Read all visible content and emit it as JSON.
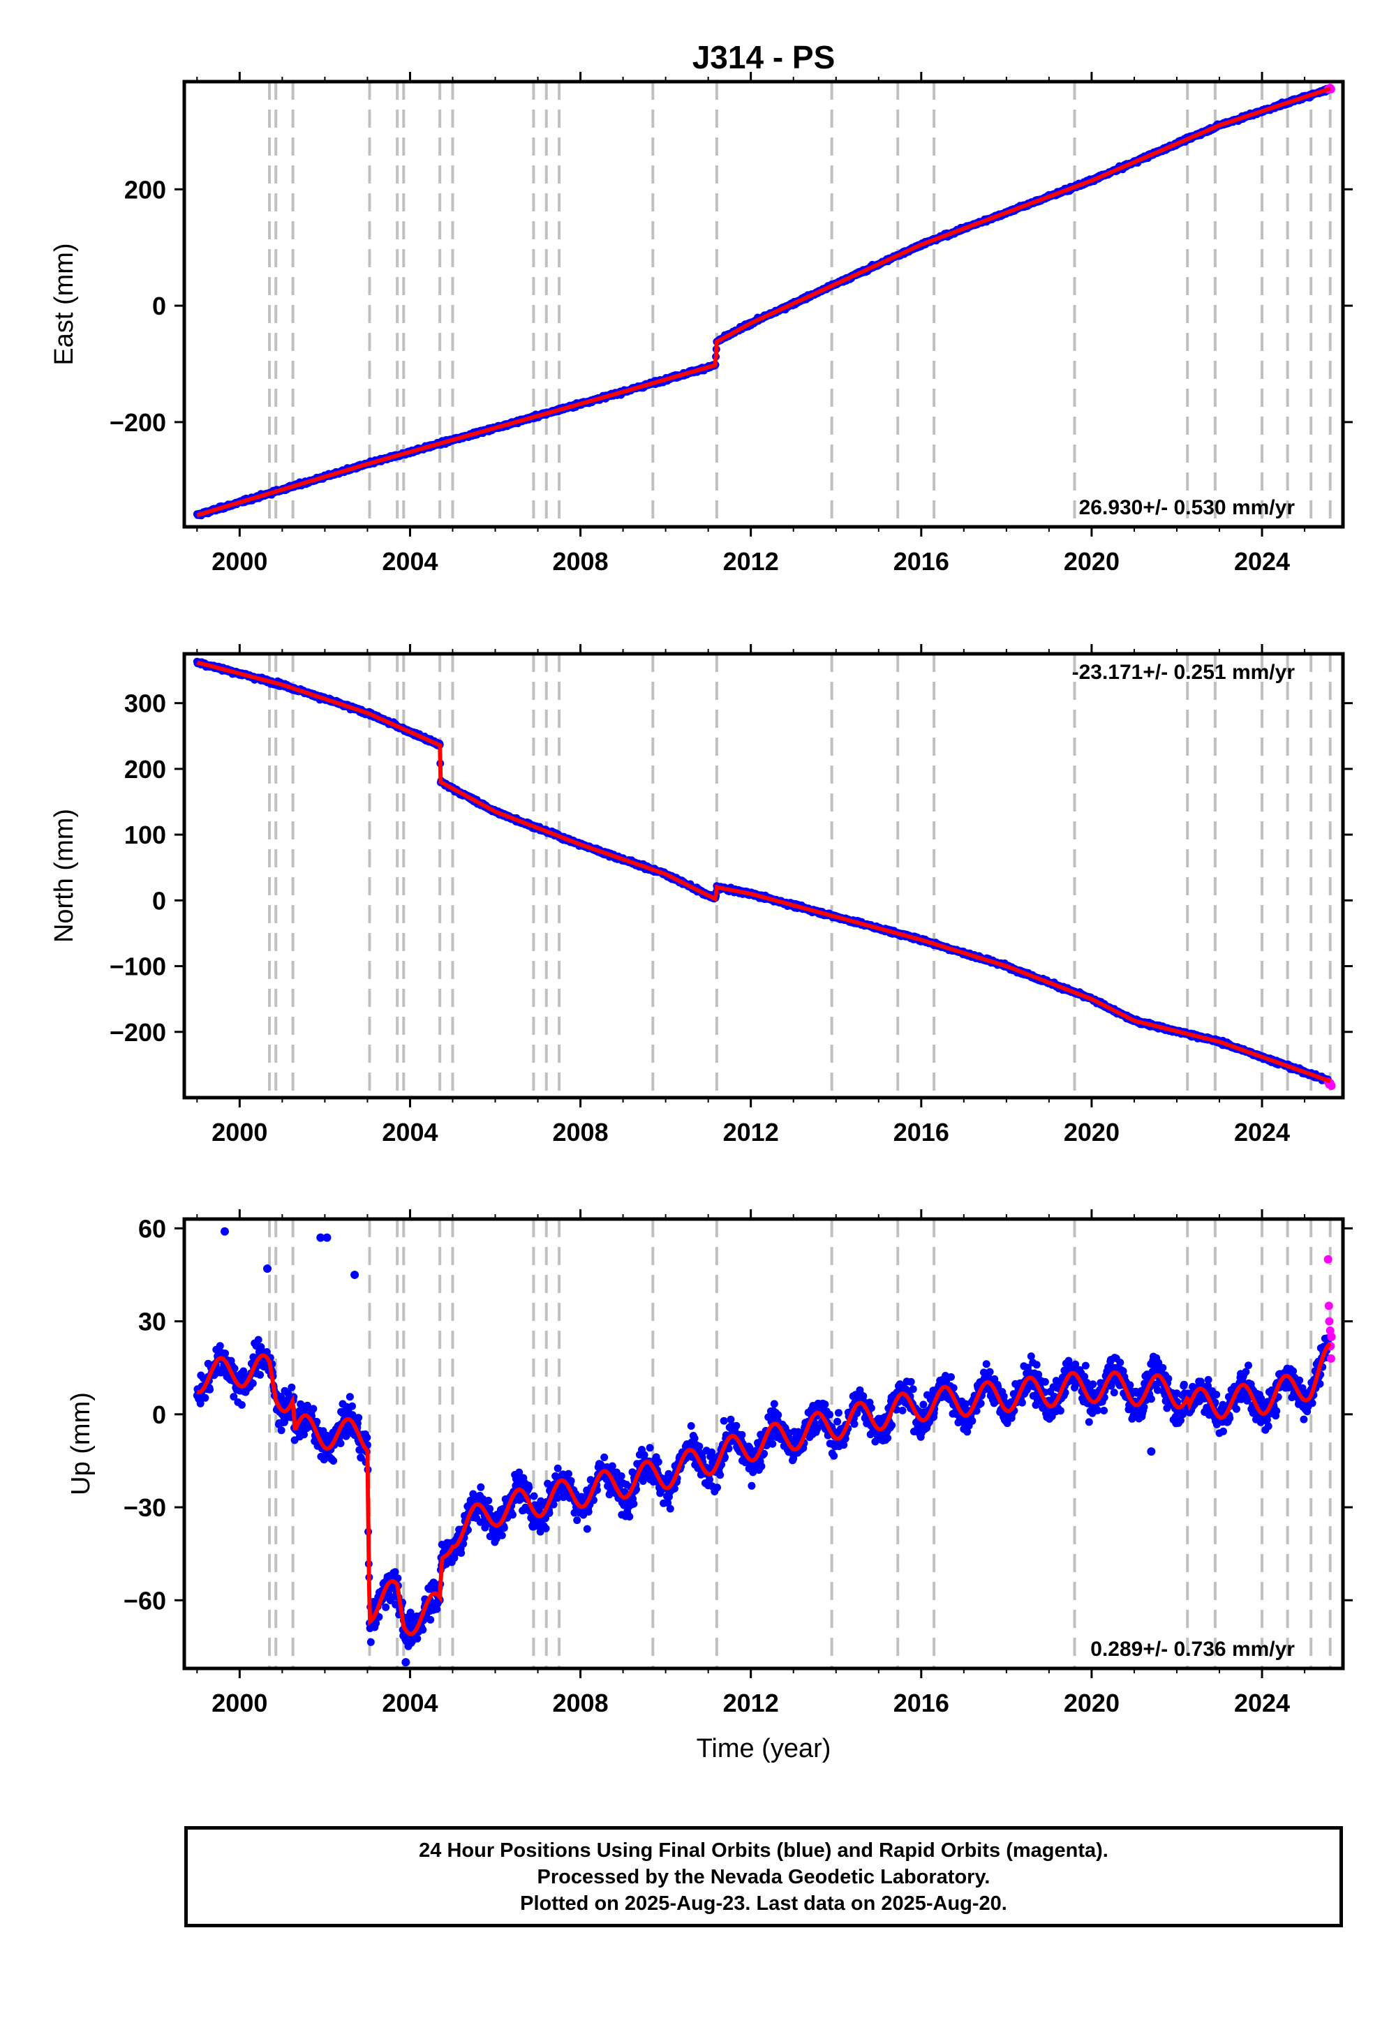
{
  "title": "J314 - PS",
  "xlabel": "Time (year)",
  "colors": {
    "final_orbits": "#0000ff",
    "rapid_orbits": "#ff00ff",
    "model": "#ff0000",
    "event_lines": "#c0c0c0"
  },
  "caption": [
    "24 Hour Positions Using Final Orbits (blue) and Rapid Orbits (magenta).",
    "Processed by the Nevada Geodetic Laboratory.",
    "Plotted on 2025-Aug-23. Last data on 2025-Aug-20."
  ],
  "chart_data": [
    {
      "type": "scatter",
      "name": "east",
      "ylabel": "East (mm)",
      "xlim": [
        1998.7,
        2025.9
      ],
      "ylim": [
        -380,
        385
      ],
      "xticks": [
        2000,
        2004,
        2008,
        2012,
        2016,
        2020,
        2024
      ],
      "yticks": [
        -200,
        0,
        200
      ],
      "rate_label": "26.930+/- 0.530 mm/yr",
      "event_lines": [
        2000.7,
        2000.85,
        2001.25,
        2003.05,
        2003.7,
        2003.85,
        2004.7,
        2005.0,
        2006.9,
        2007.2,
        2007.5,
        2009.7,
        2011.2,
        2013.9,
        2015.45,
        2016.3,
        2019.6,
        2022.25,
        2022.9,
        2024.0,
        2024.6,
        2025.15,
        2025.6
      ],
      "model_points": [
        [
          1999.0,
          -360
        ],
        [
          2003.0,
          -272
        ],
        [
          2006.0,
          -210
        ],
        [
          2009.0,
          -148
        ],
        [
          2011.17,
          -102
        ],
        [
          2011.2,
          -62
        ],
        [
          2012.0,
          -30
        ],
        [
          2016.0,
          105
        ],
        [
          2020.0,
          215
        ],
        [
          2023.0,
          310
        ],
        [
          2025.6,
          373
        ]
      ],
      "noise_mm": 3.5,
      "rapid_points": [
        [
          2025.55,
          372
        ],
        [
          2025.58,
          373
        ],
        [
          2025.6,
          374
        ],
        [
          2025.62,
          372
        ]
      ]
    },
    {
      "type": "scatter",
      "name": "north",
      "ylabel": "North (mm)",
      "xlim": [
        1998.7,
        2025.9
      ],
      "ylim": [
        -300,
        375
      ],
      "xticks": [
        2000,
        2004,
        2008,
        2012,
        2016,
        2020,
        2024
      ],
      "yticks": [
        -200,
        -100,
        0,
        100,
        200,
        300
      ],
      "rate_label": "-23.171+/- 0.251 mm/yr",
      "event_lines": [
        2000.7,
        2000.85,
        2001.25,
        2003.05,
        2003.7,
        2003.85,
        2004.7,
        2005.0,
        2006.9,
        2007.2,
        2007.5,
        2009.7,
        2011.2,
        2013.9,
        2015.45,
        2016.3,
        2019.6,
        2022.25,
        2022.9,
        2024.0,
        2024.6,
        2025.15,
        2025.6
      ],
      "model_points": [
        [
          1999.0,
          362
        ],
        [
          2001.0,
          328
        ],
        [
          2003.0,
          285
        ],
        [
          2004.7,
          236
        ],
        [
          2004.72,
          180
        ],
        [
          2006.0,
          135
        ],
        [
          2008.0,
          85
        ],
        [
          2010.0,
          40
        ],
        [
          2011.17,
          2
        ],
        [
          2011.2,
          20
        ],
        [
          2012.0,
          10
        ],
        [
          2014.0,
          -25
        ],
        [
          2016.0,
          -60
        ],
        [
          2018.0,
          -100
        ],
        [
          2020.0,
          -150
        ],
        [
          2021.0,
          -183
        ],
        [
          2023.0,
          -215
        ],
        [
          2025.6,
          -275
        ]
      ],
      "noise_mm": 3.5,
      "rapid_points": [
        [
          2025.55,
          -276
        ],
        [
          2025.58,
          -280
        ],
        [
          2025.6,
          -278
        ],
        [
          2025.63,
          -282
        ]
      ]
    },
    {
      "type": "scatter",
      "name": "up",
      "ylabel": "Up (mm)",
      "xlim": [
        1998.7,
        2025.9
      ],
      "ylim": [
        -82,
        63
      ],
      "xticks": [
        2000,
        2004,
        2008,
        2012,
        2016,
        2020,
        2024
      ],
      "yticks": [
        -60,
        -30,
        0,
        30,
        60
      ],
      "rate_label": "0.289+/- 0.736 mm/yr",
      "event_lines": [
        2000.7,
        2000.85,
        2001.25,
        2003.05,
        2003.7,
        2003.85,
        2004.7,
        2005.0,
        2006.9,
        2007.2,
        2007.5,
        2009.7,
        2011.2,
        2013.9,
        2015.45,
        2016.3,
        2019.6,
        2022.25,
        2022.9,
        2024.0,
        2024.6,
        2025.15,
        2025.6
      ],
      "model_points": [
        [
          1999.0,
          12
        ],
        [
          2000.0,
          14
        ],
        [
          2000.7,
          14
        ],
        [
          2000.85,
          6
        ],
        [
          2001.25,
          6
        ],
        [
          2001.3,
          -5
        ],
        [
          2002.0,
          -6
        ],
        [
          2003.0,
          -7
        ],
        [
          2003.05,
          -62
        ],
        [
          2003.7,
          -58
        ],
        [
          2003.85,
          -67
        ],
        [
          2004.7,
          -62
        ],
        [
          2004.75,
          -48
        ],
        [
          2005.0,
          -38
        ],
        [
          2006.0,
          -31
        ],
        [
          2008.0,
          -25
        ],
        [
          2010.0,
          -19
        ],
        [
          2012.0,
          -10
        ],
        [
          2014.0,
          -3
        ],
        [
          2016.0,
          3
        ],
        [
          2018.0,
          6
        ],
        [
          2020.0,
          9
        ],
        [
          2021.0,
          8
        ],
        [
          2022.25,
          7
        ],
        [
          2022.3,
          3
        ],
        [
          2024.0,
          5
        ],
        [
          2025.15,
          10
        ],
        [
          2025.6,
          18
        ]
      ],
      "seasonal_amplitude_mm": 5,
      "noise_mm": 7,
      "outliers": [
        [
          1999.65,
          59
        ],
        [
          2001.9,
          57
        ],
        [
          2002.05,
          57
        ],
        [
          2002.7,
          45
        ],
        [
          2000.65,
          47
        ],
        [
          2003.9,
          -80
        ],
        [
          2021.4,
          -12
        ]
      ],
      "rapid_points": [
        [
          2025.55,
          50
        ],
        [
          2025.57,
          35
        ],
        [
          2025.58,
          30
        ],
        [
          2025.6,
          27
        ],
        [
          2025.61,
          22
        ],
        [
          2025.62,
          18
        ],
        [
          2025.63,
          25
        ]
      ]
    }
  ]
}
